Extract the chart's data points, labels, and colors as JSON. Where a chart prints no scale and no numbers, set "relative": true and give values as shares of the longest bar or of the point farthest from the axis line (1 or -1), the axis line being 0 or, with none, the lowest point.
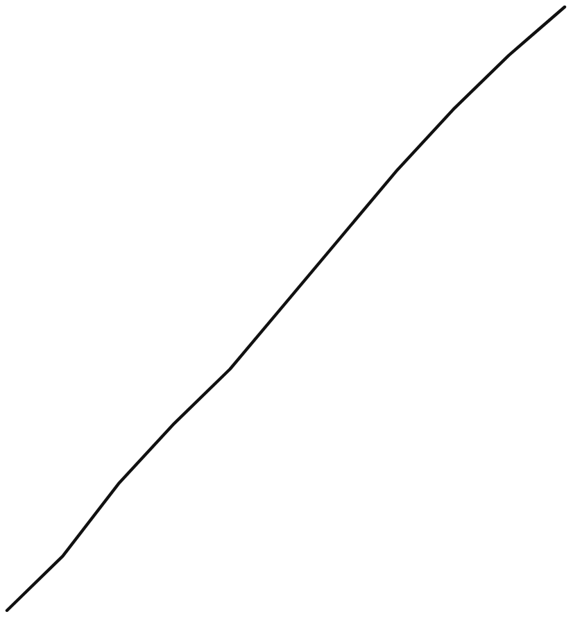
{
  "chart_data": {
    "type": "line",
    "relative": true,
    "marker": "none",
    "line_style": "solid",
    "grid": false,
    "categories": [
      null,
      null,
      null,
      null,
      null,
      null,
      null,
      null,
      null,
      null,
      null
    ],
    "series": [
      {
        "color": "#111111",
        "values": [
          0,
          0.09,
          0.21,
          0.31,
          0.4,
          0.51,
          0.62,
          0.73,
          0.83,
          0.92,
          1
        ]
      }
    ]
  }
}
